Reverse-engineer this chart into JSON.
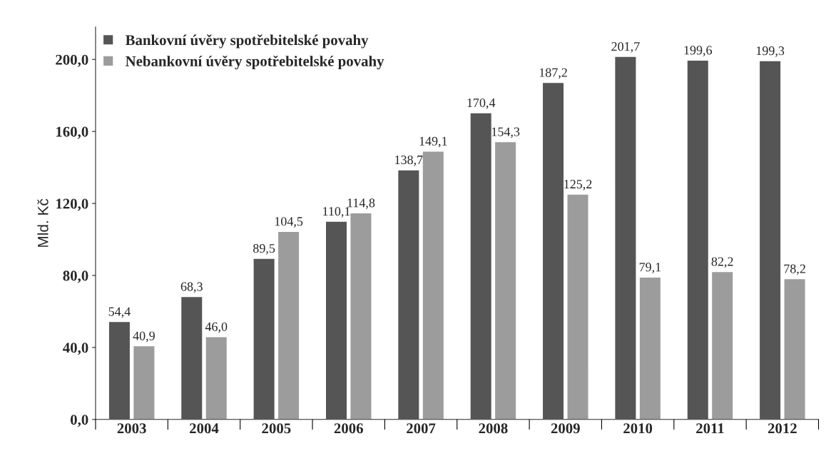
{
  "chart_data": {
    "type": "bar",
    "ylabel": "Mld. Kč",
    "categories": [
      "2003",
      "2004",
      "2005",
      "2006",
      "2007",
      "2008",
      "2009",
      "2010",
      "2011",
      "2012"
    ],
    "series": [
      {
        "name": "Bankovní úvěry spotřebitelské povahy",
        "color": "#555555",
        "values": [
          54.4,
          68.3,
          89.5,
          110.1,
          138.7,
          170.4,
          187.2,
          201.7,
          199.6,
          199.3
        ],
        "value_labels": [
          "54,4",
          "68,3",
          "89,5",
          "110,1",
          "138,7",
          "170,4",
          "187,2",
          "201,7",
          "199,6",
          "199,3"
        ]
      },
      {
        "name": "Nebankovní úvěry spotřebitelské povahy",
        "color": "#9c9c9c",
        "values": [
          40.9,
          46.0,
          104.5,
          114.8,
          149.1,
          154.3,
          125.2,
          79.1,
          82.2,
          78.2
        ],
        "value_labels": [
          "40,9",
          "46,0",
          "104,5",
          "114,8",
          "149,1",
          "154,3",
          "125,2",
          "79,1",
          "82,2",
          "78,2"
        ]
      }
    ],
    "ylim": [
      0,
      218
    ],
    "yticks": [
      {
        "value": 0,
        "label": "0,0"
      },
      {
        "value": 40,
        "label": "40,0"
      },
      {
        "value": 80,
        "label": "80,0"
      },
      {
        "value": 120,
        "label": "120,0"
      },
      {
        "value": 160,
        "label": "160,0"
      },
      {
        "value": 200,
        "label": "200,0"
      }
    ],
    "grid": false,
    "legend": "top left"
  }
}
